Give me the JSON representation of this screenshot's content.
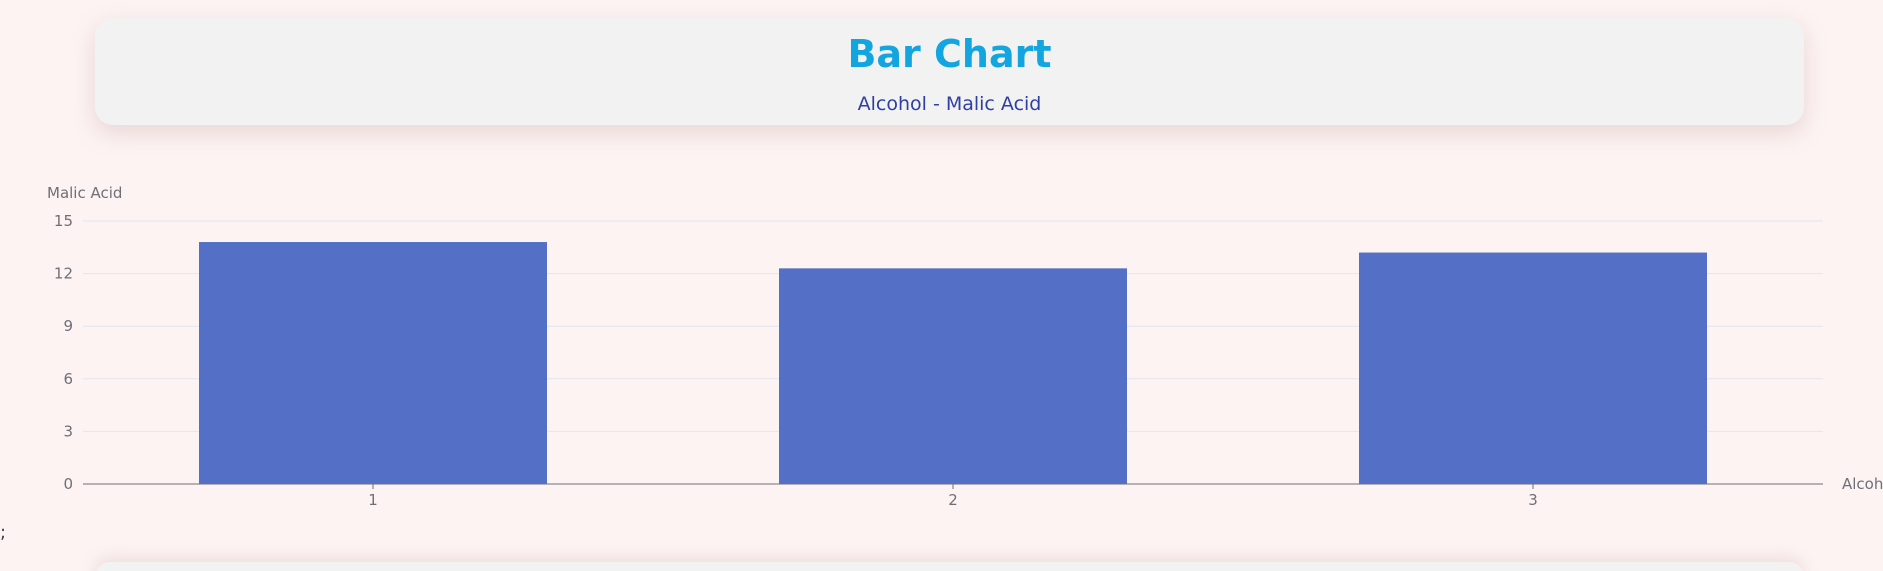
{
  "header": {
    "title": "Bar Chart",
    "subtitle": "Alcohol - Malic Acid"
  },
  "stray_text": ";",
  "colors": {
    "bar": "#5470c6",
    "title": "#12a5e0",
    "subtitle": "#2d3fa4",
    "grid": "#e0e6f1",
    "axis": "#6e7079"
  },
  "chart_data": {
    "type": "bar",
    "title": "Bar Chart",
    "subtitle": "Alcohol - Malic Acid",
    "xlabel": "Alcohol",
    "ylabel": "Malic Acid",
    "categories": [
      "1",
      "2",
      "3"
    ],
    "series": [
      {
        "name": "Malic Acid",
        "values": [
          13.8,
          12.3,
          13.2
        ]
      }
    ],
    "ylim": [
      0,
      15
    ],
    "yticks": [
      0,
      3,
      6,
      9,
      12,
      15
    ],
    "grid": true
  }
}
